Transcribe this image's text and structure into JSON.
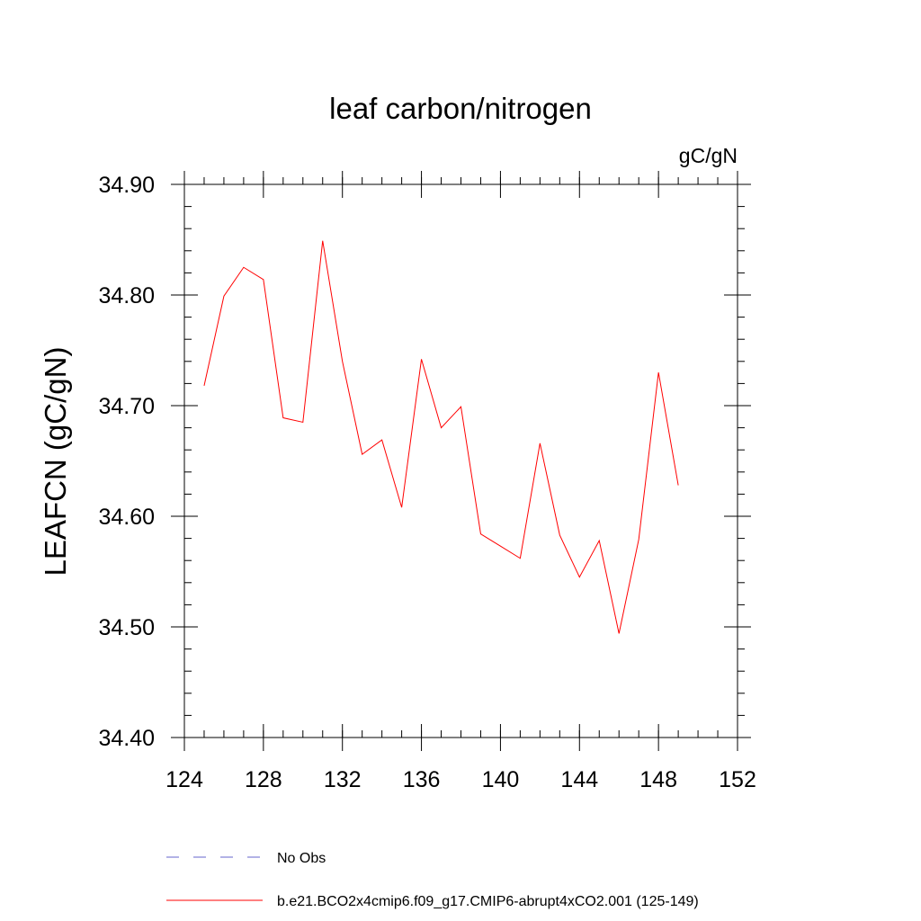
{
  "chart_data": {
    "type": "line",
    "title": "leaf carbon/nitrogen",
    "units_label": "gC/gN",
    "ylabel": "LEAFCN  (gC/gN)",
    "xlabel": "",
    "xlim": [
      124,
      152
    ],
    "ylim": [
      34.4,
      34.9
    ],
    "x_ticks": [
      124,
      128,
      132,
      136,
      140,
      144,
      148,
      152
    ],
    "x_tick_labels": [
      "124",
      "128",
      "132",
      "136",
      "140",
      "144",
      "148",
      "152"
    ],
    "y_ticks": [
      34.4,
      34.5,
      34.6,
      34.7,
      34.8,
      34.9
    ],
    "y_tick_labels": [
      "34.40",
      "34.50",
      "34.60",
      "34.70",
      "34.80",
      "34.90"
    ],
    "x_minor_step": 1,
    "y_minor_step": 0.02,
    "grid": false,
    "legend_position": "bottom",
    "series": [
      {
        "name": "No Obs",
        "color": "#6666cc",
        "dash": "dashed",
        "x": [],
        "values": []
      },
      {
        "name": "b.e21.BCO2x4cmip6.f09_g17.CMIP6-abrupt4xCO2.001 (125-149)",
        "color": "#ff0000",
        "dash": "solid",
        "x": [
          125,
          126,
          127,
          128,
          129,
          130,
          131,
          132,
          133,
          134,
          135,
          136,
          137,
          138,
          139,
          140,
          141,
          142,
          143,
          144,
          145,
          146,
          147,
          148,
          149
        ],
        "values": [
          34.718,
          34.799,
          34.825,
          34.814,
          34.689,
          34.685,
          34.849,
          34.74,
          34.656,
          34.669,
          34.608,
          34.742,
          34.68,
          34.699,
          34.584,
          34.573,
          34.562,
          34.666,
          34.583,
          34.545,
          34.578,
          34.494,
          34.579,
          34.73,
          34.628
        ]
      }
    ]
  }
}
